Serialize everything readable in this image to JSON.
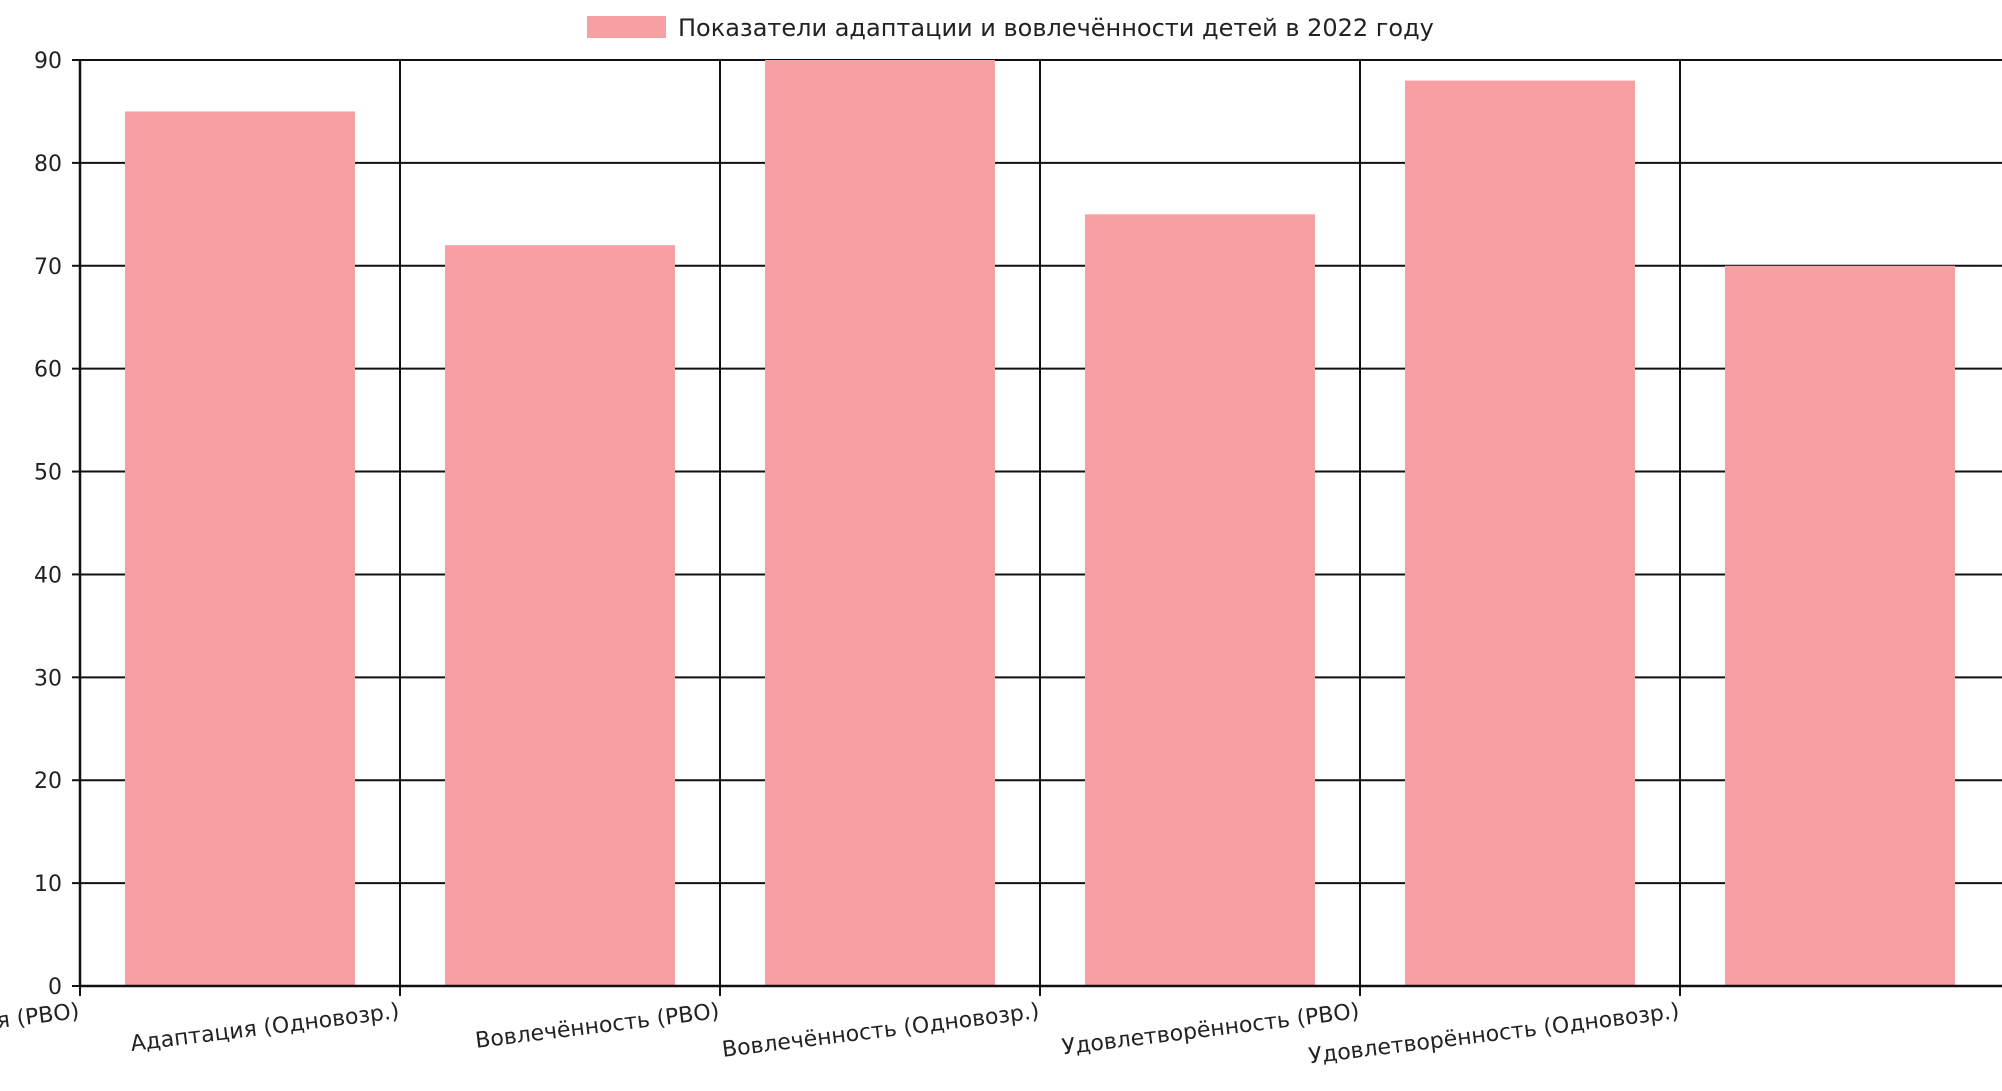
{
  "chart_data": {
    "type": "bar",
    "categories": [
      "Адаптация (РВО)",
      "Адаптация (Одновозр.)",
      "Вовлечённость (РВО)",
      "Вовлечённость (Одновозр.)",
      "Удовлетворённость (РВО)",
      "Удовлетворённость (Одновозр.)"
    ],
    "series": [
      {
        "name": "Показатели адаптации и вовлечённости детей в 2022 году",
        "values": [
          85,
          72,
          90,
          75,
          88,
          70
        ],
        "color": "#f7a0a4"
      }
    ],
    "ylim": [
      0,
      90
    ],
    "yticks": [
      0,
      10,
      20,
      30,
      40,
      50,
      60,
      70,
      80,
      90
    ],
    "grid": true,
    "legend_position": "top-center",
    "title": "",
    "xlabel": "",
    "ylabel": ""
  }
}
